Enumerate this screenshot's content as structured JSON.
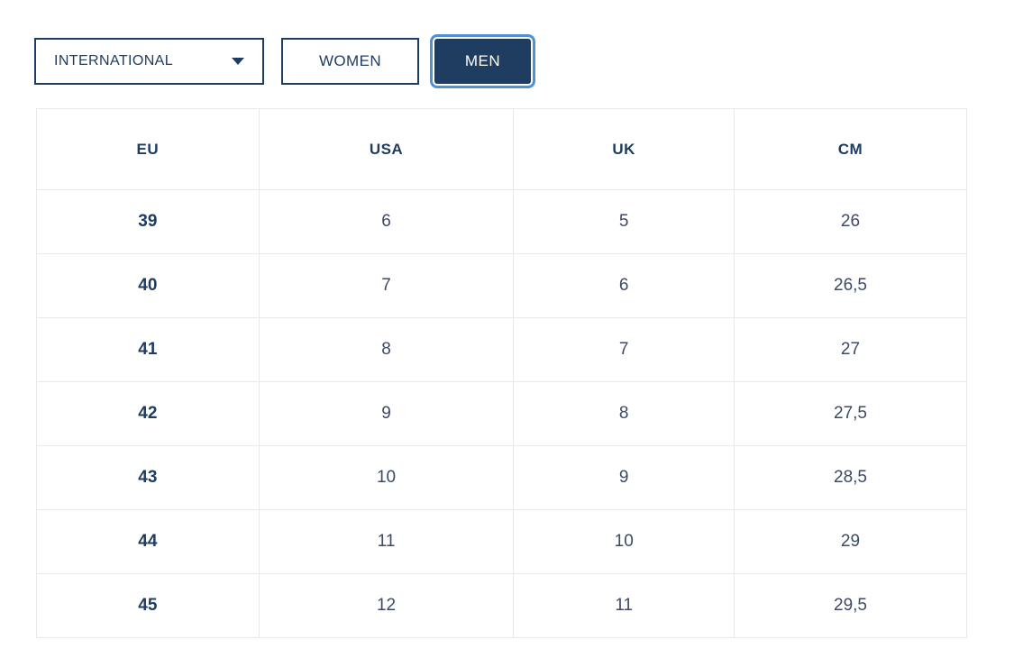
{
  "controls": {
    "region_dropdown": {
      "value": "INTERNATIONAL"
    },
    "tabs": [
      {
        "label": "WOMEN",
        "selected": false
      },
      {
        "label": "MEN",
        "selected": true
      }
    ]
  },
  "size_table": {
    "columns": [
      "EU",
      "USA",
      "UK",
      "CM"
    ],
    "rows": [
      [
        "39",
        "6",
        "5",
        "26"
      ],
      [
        "40",
        "7",
        "6",
        "26,5"
      ],
      [
        "41",
        "8",
        "7",
        "27"
      ],
      [
        "42",
        "9",
        "8",
        "27,5"
      ],
      [
        "43",
        "10",
        "9",
        "28,5"
      ],
      [
        "44",
        "11",
        "10",
        "29"
      ],
      [
        "45",
        "12",
        "11",
        "29,5"
      ]
    ]
  },
  "colors": {
    "navy": "#1f3c61",
    "body_text": "#3c4a66",
    "grid_line": "#e9e9e9",
    "focus_ring": "#5191d2",
    "background": "#ffffff",
    "selected_tab_text": "#ffffff"
  }
}
